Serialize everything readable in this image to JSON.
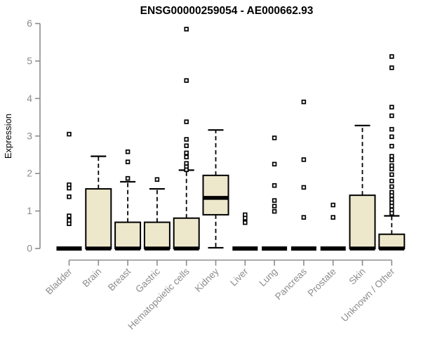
{
  "chart_data": {
    "type": "boxplot",
    "title": "ENSG00000259054 - AE000662.93",
    "xlabel": "",
    "ylabel": "Expression",
    "ylim": [
      0,
      6
    ],
    "yticks": [
      0,
      1,
      2,
      3,
      4,
      5,
      6
    ],
    "grid": false,
    "legend": null,
    "categories": [
      "Bladder",
      "Brain",
      "Breast",
      "Gastric",
      "Hematopoietic cells",
      "Kidney",
      "Liver",
      "Lung",
      "Pancreas",
      "Prostate",
      "Skin",
      "Unknown / Other"
    ],
    "boxes": [
      {
        "label": "Bladder",
        "low": 0,
        "q1": 0,
        "median": 0,
        "q3": 0,
        "high": 0,
        "outliers": [
          3.05,
          1.7,
          1.61,
          1.38,
          0.87,
          0.75,
          0.66
        ]
      },
      {
        "label": "Brain",
        "low": 0,
        "q1": 0,
        "median": 0,
        "q3": 1.59,
        "high": 2.46,
        "outliers": []
      },
      {
        "label": "Breast",
        "low": 0,
        "q1": 0,
        "median": 0,
        "q3": 0.7,
        "high": 1.78,
        "outliers": [
          2.58,
          2.31,
          1.87
        ]
      },
      {
        "label": "Gastric",
        "low": 0,
        "q1": 0,
        "median": 0,
        "q3": 0.7,
        "high": 1.59,
        "outliers": [
          1.84
        ]
      },
      {
        "label": "Hematopoietic cells",
        "low": 0,
        "q1": 0,
        "median": 0,
        "q3": 0.81,
        "high": 2.09,
        "outliers": [
          5.85,
          4.48,
          3.38,
          2.91,
          2.74,
          2.55,
          2.44,
          2.27,
          2.18,
          2.1
        ]
      },
      {
        "label": "Kidney",
        "low": 0.02,
        "q1": 0.9,
        "median": 1.35,
        "q3": 1.95,
        "high": 3.16,
        "outliers": []
      },
      {
        "label": "Liver",
        "low": 0,
        "q1": 0,
        "median": 0,
        "q3": 0,
        "high": 0,
        "outliers": [
          0.9,
          0.81,
          0.69
        ]
      },
      {
        "label": "Lung",
        "low": 0,
        "q1": 0,
        "median": 0,
        "q3": 0,
        "high": 0,
        "outliers": [
          2.95,
          2.25,
          1.68,
          1.28,
          1.13,
          0.99
        ]
      },
      {
        "label": "Pancreas",
        "low": 0,
        "q1": 0,
        "median": 0,
        "q3": 0,
        "high": 0,
        "outliers": [
          3.91,
          2.37,
          1.63,
          0.83
        ]
      },
      {
        "label": "Prostate",
        "low": 0,
        "q1": 0,
        "median": 0,
        "q3": 0,
        "high": 0,
        "outliers": [
          1.16,
          0.83
        ]
      },
      {
        "label": "Skin",
        "low": 0,
        "q1": 0,
        "median": 0,
        "q3": 1.42,
        "high": 3.28,
        "outliers": []
      },
      {
        "label": "Unknown / Other",
        "low": 0,
        "q1": 0,
        "median": 0,
        "q3": 0.38,
        "high": 0.87,
        "outliers": [
          5.12,
          4.82,
          3.77,
          3.54,
          3.18,
          2.98,
          2.73,
          2.46,
          2.36,
          2.21,
          2.12,
          1.97,
          1.8,
          1.65,
          1.5,
          1.41,
          1.31,
          1.22,
          1.13,
          1.03,
          0.94
        ]
      }
    ],
    "colors": {
      "box_fill": "#EDE7CC",
      "box_stroke": "#000000",
      "median": "#000000",
      "whisker": "#000000",
      "outlier": "#000000",
      "outlier_fill": "#ffffff",
      "axis": "#8C8C8C",
      "tick_label": "#8C8C8C",
      "title": "#000000"
    }
  }
}
